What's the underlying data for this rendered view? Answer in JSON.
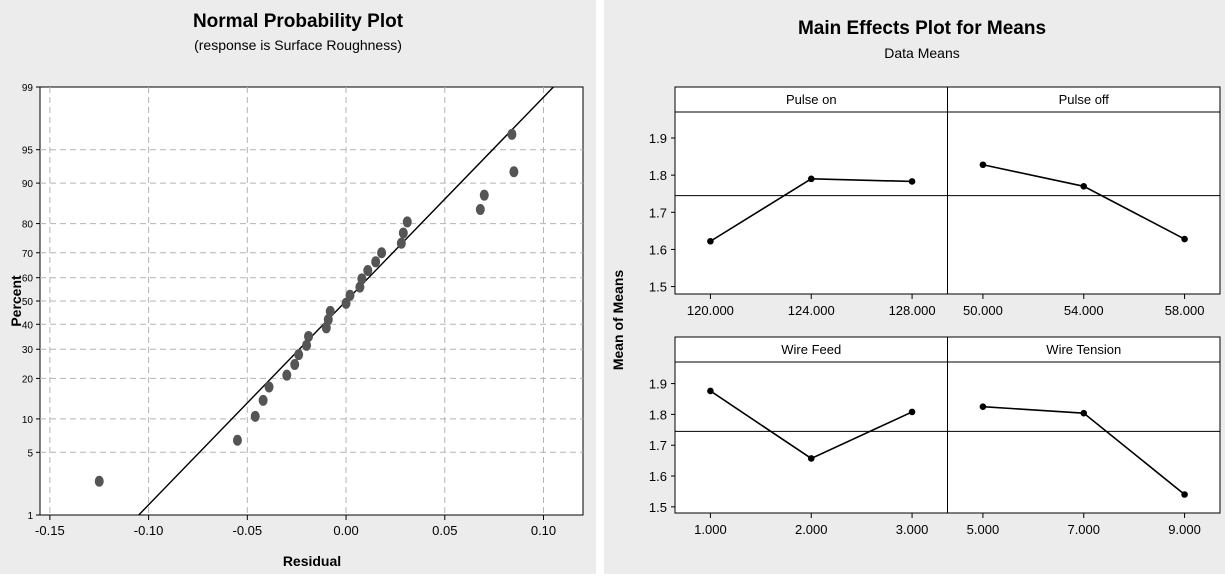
{
  "colors": {
    "background": "#ececec",
    "plot_area": "#ffffff",
    "points": "#555555",
    "line": "#000000",
    "grid": "#b4b4b4"
  },
  "chart_data": [
    {
      "type": "scatter",
      "title": "Normal Probability Plot",
      "subtitle": "(response is Surface Roughness)",
      "xlabel": "Residual",
      "ylabel": "Percent",
      "y_scale": "normal-probability",
      "xlim": [
        -0.155,
        0.12
      ],
      "x_ticks": [
        -0.15,
        -0.1,
        -0.05,
        0.0,
        0.05,
        0.1
      ],
      "x_tick_labels": [
        "-0.15",
        "-0.10",
        "-0.05",
        "0.00",
        "0.05",
        "0.10"
      ],
      "y_ticks": [
        1,
        5,
        10,
        20,
        30,
        40,
        50,
        60,
        70,
        80,
        90,
        95,
        99
      ],
      "y_tick_labels": [
        "1",
        "5",
        "10",
        "20",
        "30",
        "40",
        "50",
        "60",
        "70",
        "80",
        "90",
        "95",
        "99"
      ],
      "grid": true,
      "fit_line": {
        "x": [
          -0.105,
          0.105
        ],
        "y": [
          1,
          99
        ]
      },
      "points": [
        {
          "x": -0.125,
          "y": 2.5
        },
        {
          "x": -0.055,
          "y": 6.5
        },
        {
          "x": -0.046,
          "y": 10.5
        },
        {
          "x": -0.042,
          "y": 14
        },
        {
          "x": -0.039,
          "y": 17.5
        },
        {
          "x": -0.03,
          "y": 21
        },
        {
          "x": -0.026,
          "y": 24.5
        },
        {
          "x": -0.024,
          "y": 28
        },
        {
          "x": -0.02,
          "y": 31.5
        },
        {
          "x": -0.019,
          "y": 35
        },
        {
          "x": -0.01,
          "y": 38.5
        },
        {
          "x": -0.009,
          "y": 42
        },
        {
          "x": -0.008,
          "y": 45.5
        },
        {
          "x": 0.0,
          "y": 49
        },
        {
          "x": 0.002,
          "y": 52.5
        },
        {
          "x": 0.007,
          "y": 56
        },
        {
          "x": 0.008,
          "y": 59.5
        },
        {
          "x": 0.011,
          "y": 63
        },
        {
          "x": 0.015,
          "y": 66.5
        },
        {
          "x": 0.018,
          "y": 70
        },
        {
          "x": 0.028,
          "y": 73.5
        },
        {
          "x": 0.029,
          "y": 77
        },
        {
          "x": 0.031,
          "y": 80.5
        },
        {
          "x": 0.068,
          "y": 84
        },
        {
          "x": 0.07,
          "y": 87.5
        },
        {
          "x": 0.085,
          "y": 92
        },
        {
          "x": 0.084,
          "y": 96.5
        }
      ]
    },
    {
      "type": "line",
      "title": "Main Effects Plot for Means",
      "subtitle": "Data Means",
      "ylabel": "Mean of Means",
      "ylim": [
        1.48,
        1.97
      ],
      "y_ticks": [
        1.5,
        1.6,
        1.7,
        1.8,
        1.9
      ],
      "y_tick_labels": [
        "1.5",
        "1.6",
        "1.7",
        "1.8",
        "1.9"
      ],
      "reference_line": 1.745,
      "panels": [
        {
          "name": "Pulse on",
          "categories": [
            "120.000",
            "124.000",
            "128.000"
          ],
          "values": [
            1.622,
            1.79,
            1.783
          ]
        },
        {
          "name": "Pulse off",
          "categories": [
            "50.000",
            "54.000",
            "58.000"
          ],
          "values": [
            1.828,
            1.77,
            1.628
          ]
        },
        {
          "name": "Wire Feed",
          "categories": [
            "1.000",
            "2.000",
            "3.000"
          ],
          "values": [
            1.876,
            1.657,
            1.808
          ]
        },
        {
          "name": "Wire Tension",
          "categories": [
            "5.000",
            "7.000",
            "9.000"
          ],
          "values": [
            1.825,
            1.804,
            1.54
          ]
        }
      ]
    }
  ]
}
